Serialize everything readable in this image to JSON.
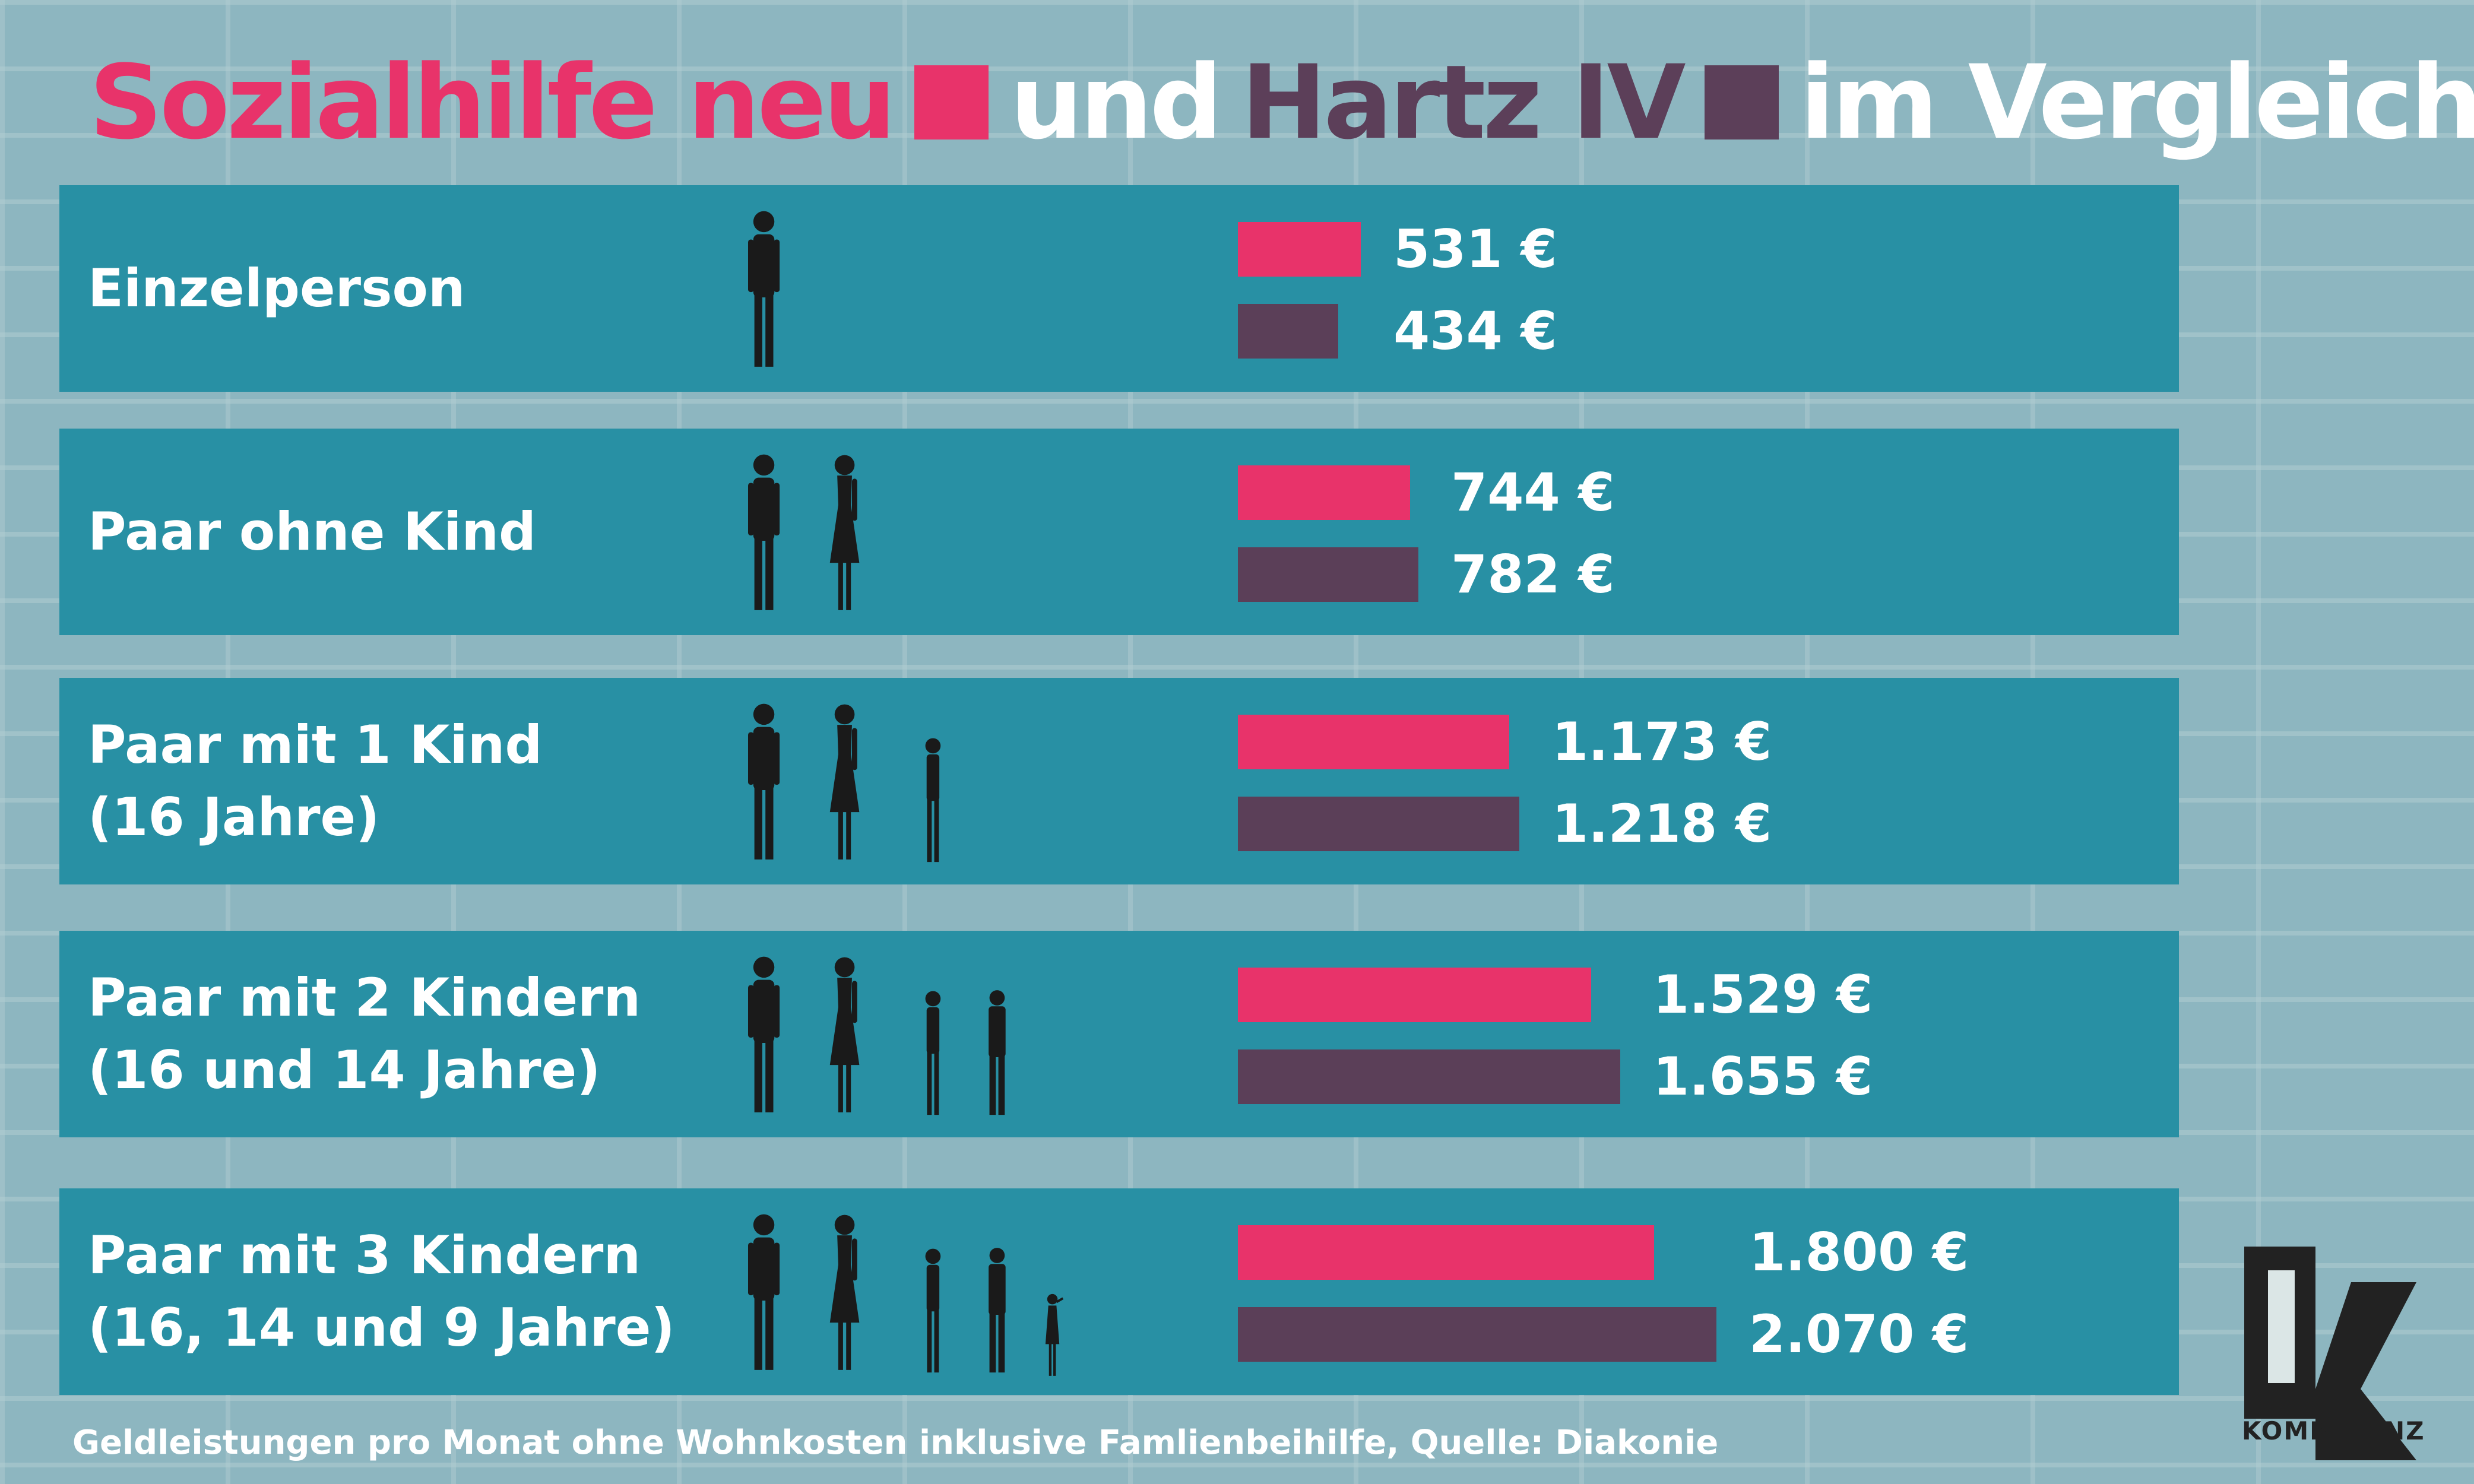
{
  "title": {
    "part1": "Sozialhilfe neu",
    "part2": "und",
    "part3": "Hartz IV",
    "part4": "im Vergleich"
  },
  "colors": {
    "sozialhilfe_neu": "#e8336a",
    "hartz_iv": "#5b3f58",
    "band": "#2890a4"
  },
  "chart_data": {
    "type": "bar",
    "orientation": "horizontal",
    "categories": [
      [
        "Einzelperson"
      ],
      [
        "Paar ohne Kind"
      ],
      [
        "Paar mit 1 Kind",
        "(16 Jahre)"
      ],
      [
        "Paar mit 2 Kindern",
        "(16 und 14 Jahre)"
      ],
      [
        "Paar mit 3 Kindern",
        "(16, 14 und 9 Jahre)"
      ]
    ],
    "series": [
      {
        "name": "Sozialhilfe neu",
        "values": [
          531,
          744,
          1173,
          1529,
          1800
        ],
        "labels": [
          "531 €",
          "744 €",
          "1.173 €",
          "1.529 €",
          "1.800 €"
        ]
      },
      {
        "name": "Hartz IV",
        "values": [
          434,
          782,
          1218,
          1655,
          2070
        ],
        "labels": [
          "434 €",
          "782 €",
          "1.218 €",
          "1.655 €",
          "2.070 €"
        ]
      }
    ],
    "people_icons": [
      [
        "man-silhouette-icon"
      ],
      [
        "man-silhouette-icon",
        "woman-silhouette-icon"
      ],
      [
        "man-silhouette-icon",
        "woman-silhouette-icon",
        "girl-silhouette-icon"
      ],
      [
        "man-silhouette-icon",
        "woman-silhouette-icon",
        "girl-silhouette-icon",
        "boy-silhouette-icon"
      ],
      [
        "man-silhouette-icon",
        "woman-silhouette-icon",
        "girl-silhouette-icon",
        "boy-silhouette-icon",
        "child-silhouette-icon"
      ]
    ]
  },
  "source": "Geldleistungen pro Monat ohne Wohnkosten inklusive Famlienbeihilfe, Quelle: Diakonie",
  "logo": {
    "name": "KOMPETENZ",
    "icon": "k-logo-icon"
  }
}
